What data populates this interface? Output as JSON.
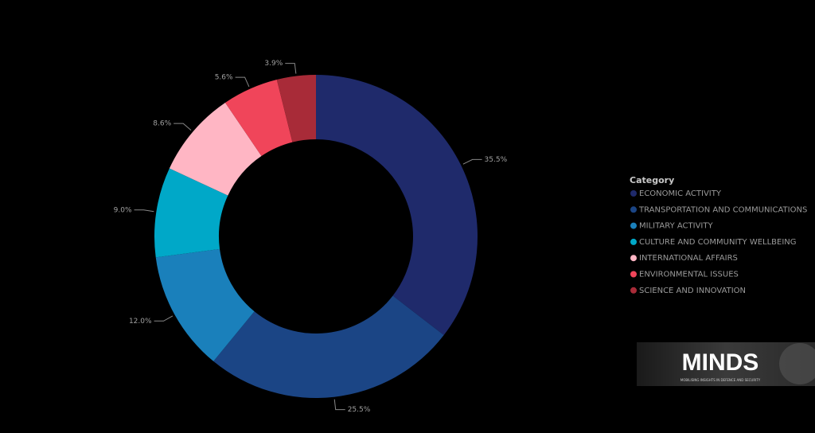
{
  "chart_data": {
    "type": "donut",
    "legend_title": "Category",
    "legend_position": "right",
    "categories": [
      "ECONOMIC ACTIVITY",
      "TRANSPORTATION AND COMMUNICATIONS",
      "MILITARY ACTIVITY",
      "CULTURE AND COMMUNITY WELLBEING",
      "INTERNATIONAL AFFAIRS",
      "ENVIRONMENTAL ISSUES",
      "SCIENCE AND INNOVATION"
    ],
    "values": [
      35.5,
      25.5,
      12.0,
      9.0,
      8.6,
      5.6,
      3.9
    ],
    "value_labels": [
      "35.5%",
      "25.5%",
      "12.0%",
      "9.0%",
      "8.6%",
      "5.6%",
      "3.9%"
    ],
    "colors": [
      "#1f2a6b",
      "#1b4585",
      "#1a80bb",
      "#00a8c8",
      "#ffb6c4",
      "#f0455a",
      "#a82b38"
    ]
  },
  "logo": {
    "title": "MINDS",
    "subtitle": "MOBILISING INSIGHTS IN DEFENCE AND SECURITY"
  }
}
